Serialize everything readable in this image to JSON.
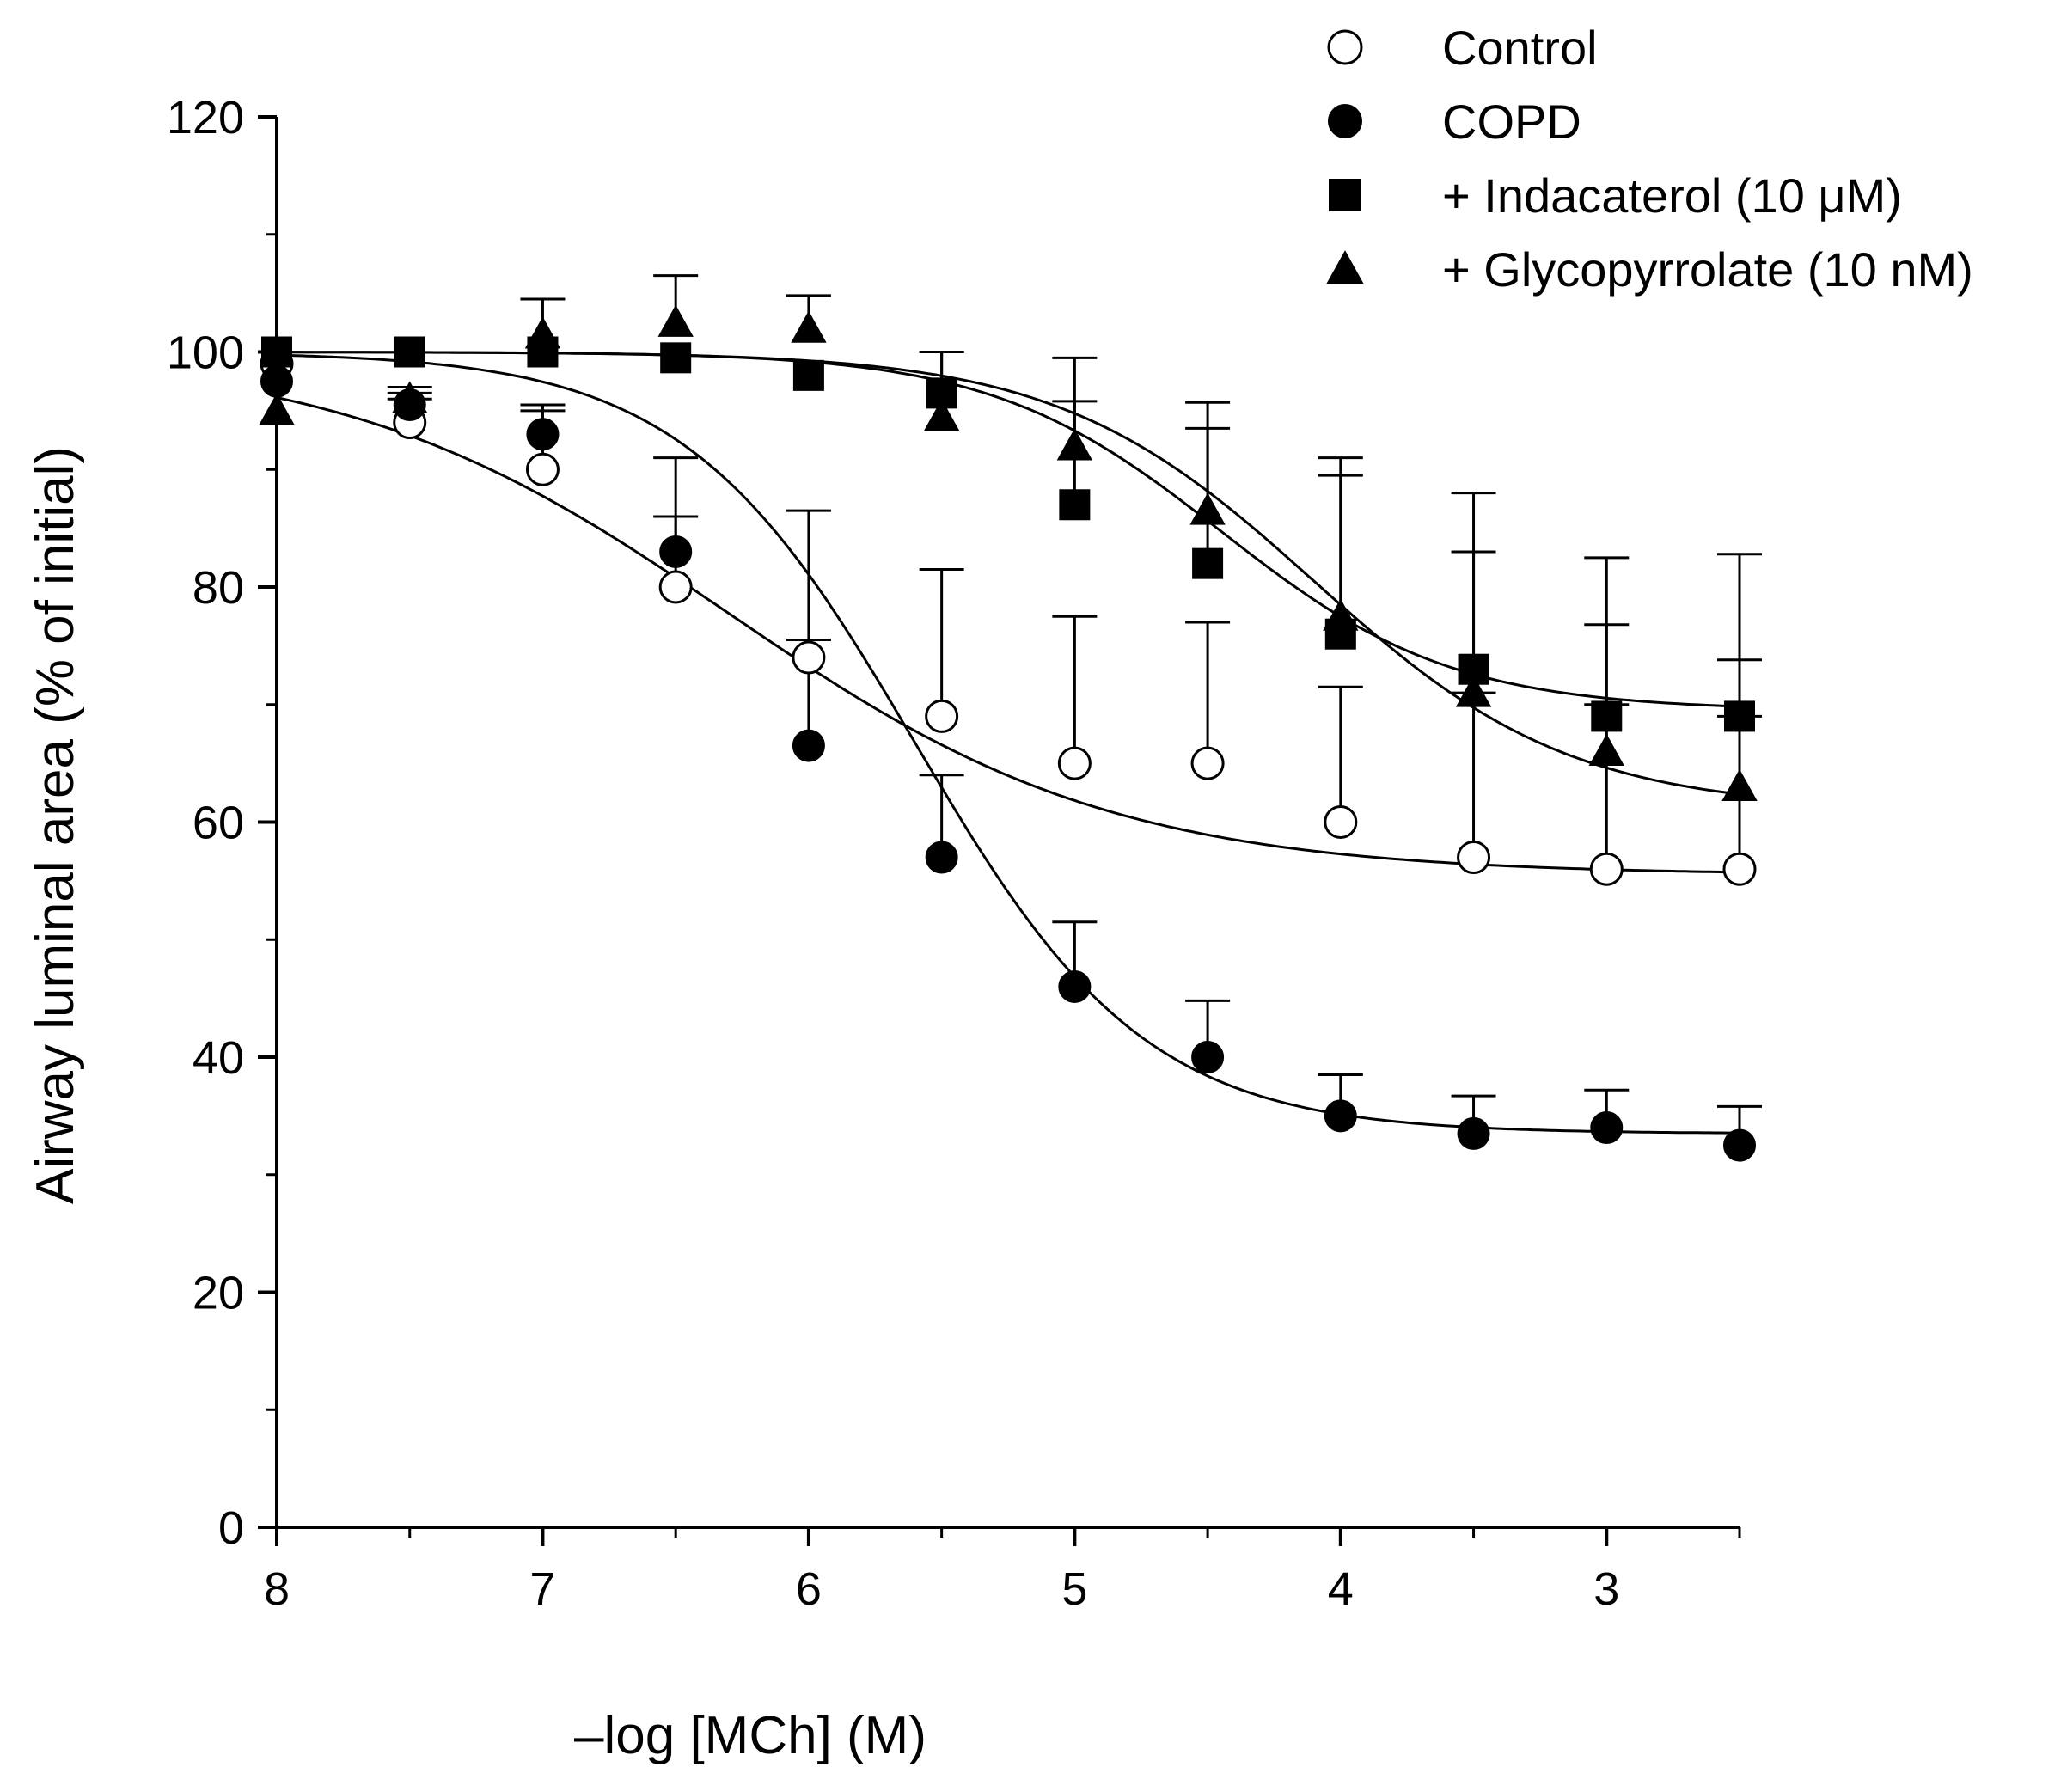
{
  "chart_data": {
    "type": "scatter",
    "title": "",
    "xlabel": "–log [MCh] (M)",
    "ylabel": "Airway luminal area (% of initial)",
    "xlim": [
      8,
      2.5
    ],
    "ylim": [
      0,
      120
    ],
    "xticks": [
      8,
      7,
      6,
      5,
      4,
      3
    ],
    "yticks": [
      0,
      20,
      40,
      60,
      80,
      100,
      120
    ],
    "grid": false,
    "legend_position": "top-right",
    "series": [
      {
        "name": "Control",
        "marker": "circle-open",
        "x": [
          8,
          7.5,
          7,
          6.5,
          6,
          5.5,
          5,
          4.5,
          4,
          3.5,
          3,
          2.5
        ],
        "y": [
          99,
          94,
          90,
          80,
          74,
          69,
          65,
          65,
          60,
          57,
          56,
          56
        ],
        "err": [
          0,
          2,
          5,
          6,
          12.5,
          12.5,
          12.5,
          12,
          11.5,
          14,
          14,
          13
        ]
      },
      {
        "name": "COPD",
        "marker": "circle-filled",
        "x": [
          8,
          7.5,
          7,
          6.5,
          6,
          5.5,
          5,
          4.5,
          4,
          3.5,
          3,
          2.5
        ],
        "y": [
          97.5,
          95.5,
          93,
          83,
          66.5,
          57,
          46,
          40,
          35,
          33.5,
          34,
          32.5
        ],
        "err": [
          0,
          1.5,
          2.5,
          8,
          9,
          7,
          5.5,
          4.8,
          3.5,
          3.2,
          3.2,
          3.3
        ]
      },
      {
        "name": "+ Indacaterol (10 μM)",
        "marker": "square-filled",
        "x": [
          8,
          7.5,
          7,
          6.5,
          6,
          5.5,
          5,
          4.5,
          4,
          3.5,
          3,
          2.5
        ],
        "y": [
          100,
          100,
          100,
          99.5,
          98,
          96.5,
          87,
          82,
          76,
          73,
          69,
          69
        ],
        "err": [
          0,
          0,
          0,
          0,
          0,
          3.5,
          8.8,
          11.5,
          13.5,
          15,
          13.5,
          13.8
        ]
      },
      {
        "name": "+ Glycopyrrolate (10 nM)",
        "marker": "triangle-filled",
        "x": [
          8,
          7.5,
          7,
          6.5,
          6,
          5.5,
          5,
          4.5,
          4,
          3.5,
          3,
          2.5
        ],
        "y": [
          95,
          96,
          101.5,
          102.5,
          102,
          94.5,
          92,
          86.5,
          77.5,
          71,
          66,
          63
        ],
        "err": [
          0,
          0.5,
          3,
          4,
          2.8,
          5.5,
          7.5,
          9.2,
          13.5,
          12,
          10.8,
          10.8
        ]
      }
    ],
    "fit_curves": [
      {
        "name": "Control",
        "top": 100,
        "bottom": 55.5,
        "logEC50": 6.3,
        "hill": 0.6
      },
      {
        "name": "COPD",
        "top": 100,
        "bottom": 33.5,
        "logEC50": 5.6,
        "hill": 1.0
      },
      {
        "name": "+ Indacaterol (10 μM)",
        "top": 100,
        "bottom": 69.5,
        "logEC50": 4.45,
        "hill": 1.0
      },
      {
        "name": "+ Glycopyrrolate (10 nM)",
        "top": 100,
        "bottom": 61,
        "logEC50": 4.1,
        "hill": 0.9
      }
    ]
  }
}
